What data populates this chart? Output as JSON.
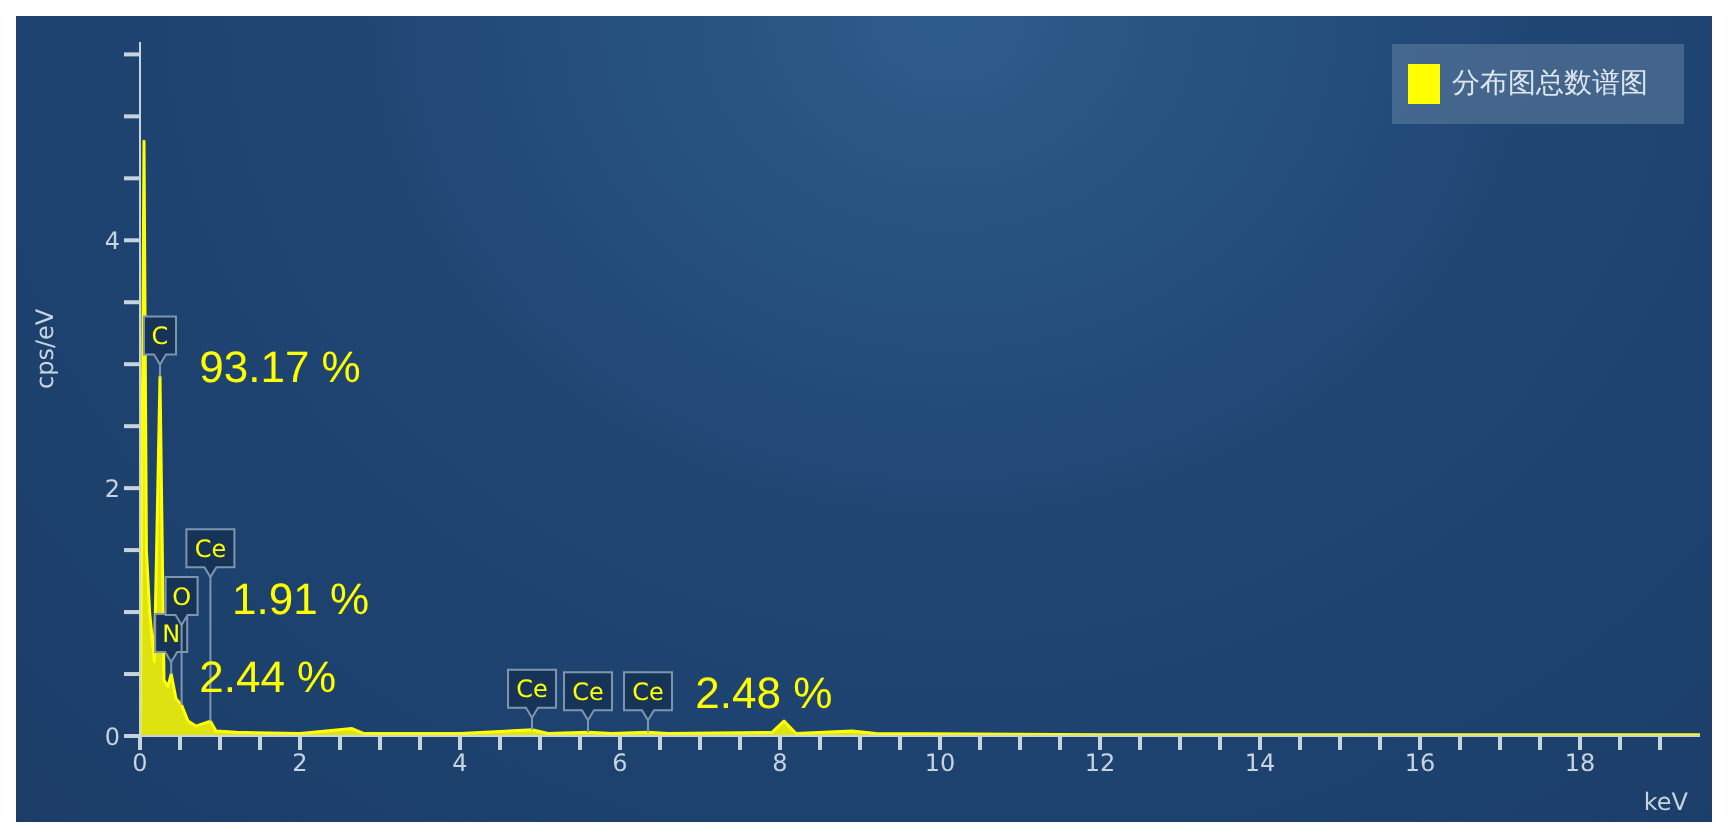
{
  "chart_data": {
    "type": "area",
    "xlabel": "keV",
    "ylabel": "cps/eV",
    "legend": "top right",
    "marker": "none",
    "x": [
      0,
      0.02,
      0.05,
      0.08,
      0.12,
      0.18,
      0.25,
      0.3,
      0.35,
      0.39,
      0.45,
      0.52,
      0.6,
      0.7,
      0.88,
      0.95,
      1.2,
      2.0,
      2.65,
      2.8,
      4.0,
      4.9,
      5.1,
      5.6,
      5.9,
      6.35,
      6.6,
      7.9,
      8.05,
      8.2,
      8.9,
      9.2,
      12,
      19.5
    ],
    "series": [
      {
        "name": "分布图总数谱图",
        "color": "#ffff00",
        "values": [
          0,
          1.5,
          4.8,
          1.5,
          1.0,
          0.6,
          2.9,
          0.45,
          0.4,
          0.5,
          0.3,
          0.25,
          0.12,
          0.08,
          0.12,
          0.04,
          0.03,
          0.02,
          0.06,
          0.02,
          0.02,
          0.05,
          0.02,
          0.03,
          0.02,
          0.03,
          0.02,
          0.03,
          0.12,
          0.02,
          0.04,
          0.02,
          0.01,
          0.01
        ]
      }
    ],
    "xlim": [
      0,
      19.5
    ],
    "xticks": [
      0,
      {
        "value": 0.5,
        "label": null
      },
      {
        "value": 1,
        "label": null
      },
      {
        "value": 1.5,
        "label": null
      },
      2,
      {
        "value": 2.5,
        "label": null
      },
      {
        "value": 3,
        "label": null
      },
      {
        "value": 3.5,
        "label": null
      },
      4,
      {
        "value": 4.5,
        "label": null
      },
      {
        "value": 5,
        "label": null
      },
      {
        "value": 5.5,
        "label": null
      },
      6,
      {
        "value": 6.5,
        "label": null
      },
      {
        "value": 7,
        "label": null
      },
      {
        "value": 7.5,
        "label": null
      },
      8,
      {
        "value": 8.5,
        "label": null
      },
      {
        "value": 9,
        "label": null
      },
      {
        "value": 9.5,
        "label": null
      },
      10,
      {
        "value": 10.5,
        "label": null
      },
      {
        "value": 11,
        "label": null
      },
      {
        "value": 11.5,
        "label": null
      },
      12,
      {
        "value": 12.5,
        "label": null
      },
      {
        "value": 13,
        "label": null
      },
      {
        "value": 13.5,
        "label": null
      },
      14,
      {
        "value": 14.5,
        "label": null
      },
      {
        "value": 15,
        "label": null
      },
      {
        "value": 15.5,
        "label": null
      },
      16,
      {
        "value": 16.5,
        "label": null
      },
      {
        "value": 17,
        "label": null
      },
      {
        "value": 17.5,
        "label": null
      },
      18,
      {
        "value": 18.5,
        "label": null
      },
      {
        "value": 19,
        "label": null
      }
    ],
    "ylim": [
      0,
      5.6
    ],
    "yticks": [
      0,
      {
        "value": 0.5,
        "label": null
      },
      {
        "value": 1,
        "label": null
      },
      {
        "value": 1.5,
        "label": null
      },
      2,
      {
        "value": 2.5,
        "label": null
      },
      {
        "value": 3,
        "label": null
      },
      {
        "value": 3.5,
        "label": null
      },
      4,
      {
        "value": 4.5,
        "label": null
      },
      {
        "value": 5,
        "label": null
      },
      {
        "value": 5.5,
        "label": null
      }
    ],
    "annotations": [
      {
        "text": "C",
        "x": 0.25,
        "y": 2.9
      },
      {
        "text": "N",
        "x": 0.39,
        "y": 0.5
      },
      {
        "text": "O",
        "x": 0.52,
        "y": 0.25
      },
      {
        "text": "Ce",
        "x": 0.88,
        "y": 0.12
      },
      {
        "text": "Ce",
        "x": 4.9,
        "y": 0.05
      },
      {
        "text": "Ce",
        "x": 5.6,
        "y": 0.03
      },
      {
        "text": "Ce",
        "x": 6.35,
        "y": 0.03
      },
      "93.17 %",
      "1.91 %",
      "2.44 %",
      "2.48 %"
    ]
  }
}
